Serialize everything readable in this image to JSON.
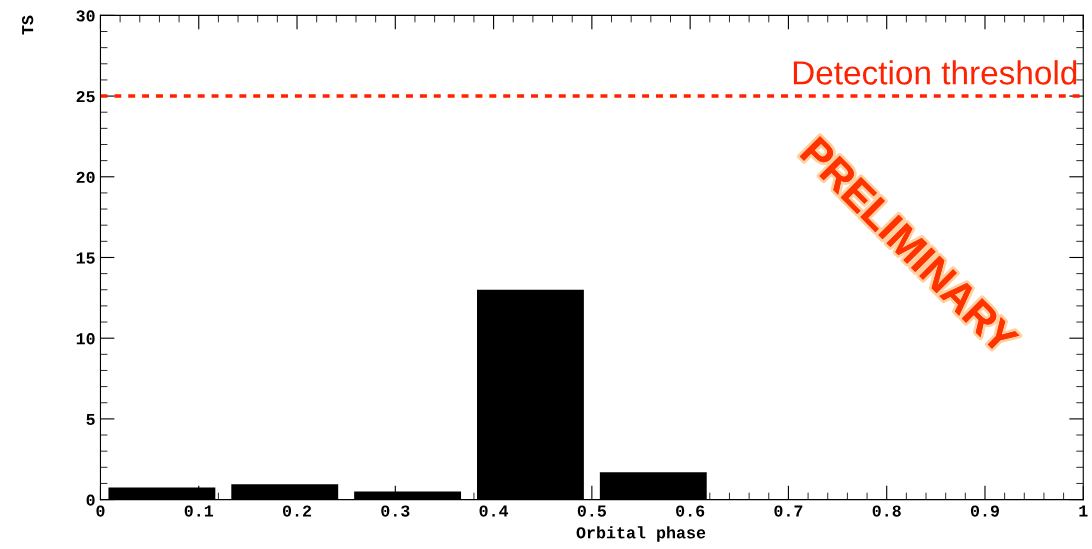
{
  "chart_data": {
    "type": "bar",
    "xlabel": "Orbital phase",
    "ylabel": "TS",
    "x": [
      0.0625,
      0.1875,
      0.3125,
      0.4375,
      0.5625
    ],
    "values": [
      0.75,
      0.95,
      0.5,
      13,
      1.7
    ],
    "color": "#000000",
    "xlim": [
      0,
      1
    ],
    "xticks": [
      0,
      0.1,
      0.2,
      0.3,
      0.4,
      0.5,
      0.6,
      0.7,
      0.8,
      0.9,
      1
    ],
    "ylim": [
      0,
      30
    ],
    "yticks": [
      0,
      5,
      10,
      15,
      20,
      25,
      30
    ],
    "ref_lines": [
      {
        "axis": "y",
        "value": 25,
        "label": "Detection threshold",
        "color": "#ff2200",
        "line_style": "dotted"
      }
    ],
    "annotations": [
      "PRELIMINARY"
    ],
    "grid": false,
    "legend": false
  }
}
